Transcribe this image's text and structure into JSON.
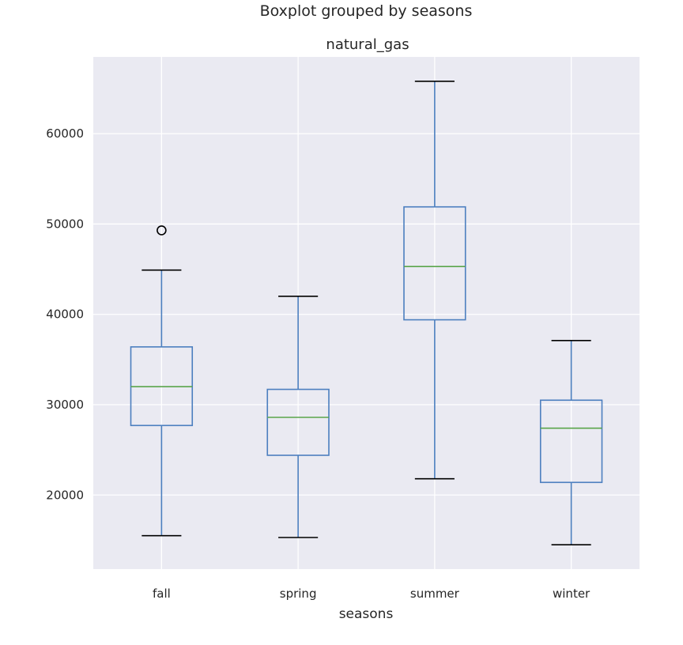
{
  "chart_data": {
    "type": "boxplot",
    "suptitle": "Boxplot grouped by seasons",
    "title": "natural_gas",
    "xlabel": "seasons",
    "ylabel": "",
    "ylim": [
      11800,
      68500
    ],
    "yticks": [
      20000,
      30000,
      40000,
      50000,
      60000
    ],
    "categories": [
      "fall",
      "spring",
      "summer",
      "winter"
    ],
    "boxes": [
      {
        "category": "fall",
        "whisker_low": 15500,
        "q1": 27700,
        "median": 32000,
        "q3": 36400,
        "whisker_high": 44900,
        "outliers": [
          49300
        ]
      },
      {
        "category": "spring",
        "whisker_low": 15300,
        "q1": 24400,
        "median": 28600,
        "q3": 31700,
        "whisker_high": 42000,
        "outliers": []
      },
      {
        "category": "summer",
        "whisker_low": 21800,
        "q1": 39400,
        "median": 45300,
        "q3": 51900,
        "whisker_high": 65800,
        "outliers": []
      },
      {
        "category": "winter",
        "whisker_low": 14500,
        "q1": 21400,
        "median": 27400,
        "q3": 30500,
        "whisker_high": 37100,
        "outliers": []
      }
    ],
    "grid": true,
    "colors": {
      "background": "#eaeaf2",
      "grid": "#ffffff",
      "box": "#4c7fbf",
      "median": "#5aa54b",
      "cap": "#000000"
    }
  }
}
